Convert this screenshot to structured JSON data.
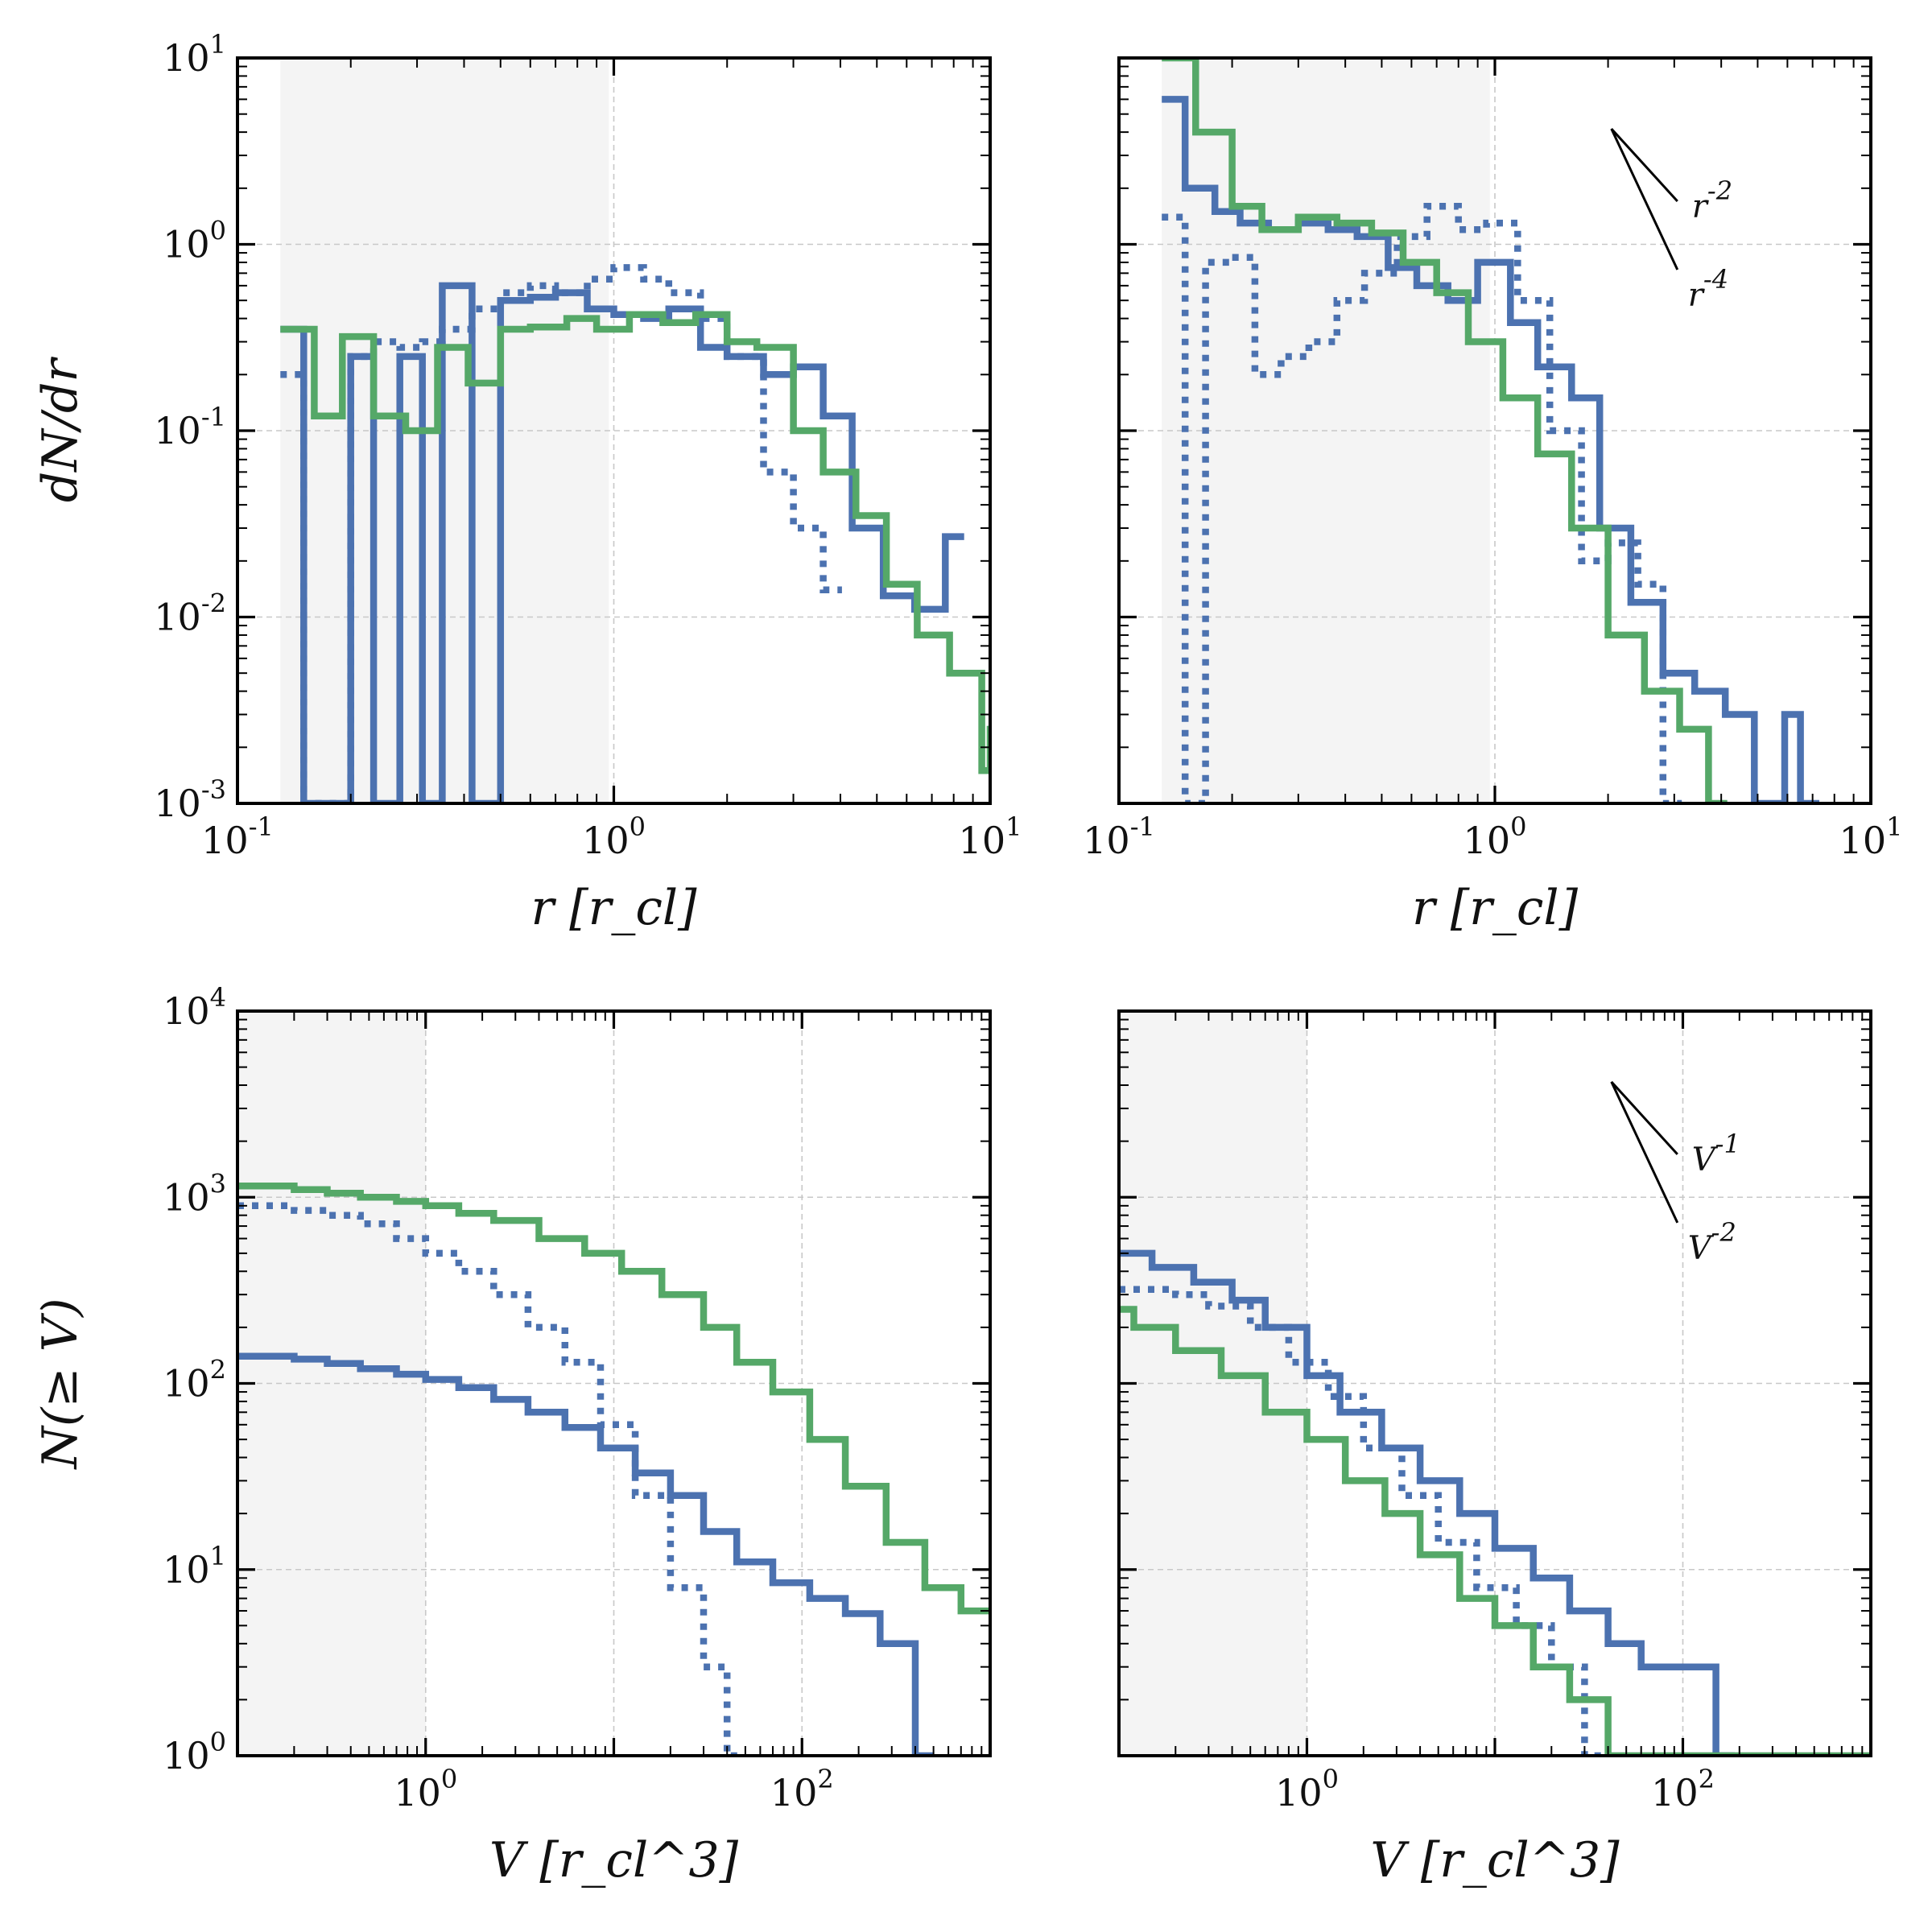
{
  "chart_data": [
    {
      "id": "top-left",
      "type": "line",
      "panel": "top-left",
      "xscale": "log",
      "yscale": "log",
      "xlim": [
        0.1,
        10
      ],
      "ylim": [
        0.001,
        10
      ],
      "shaded_x": [
        0.13,
        0.97
      ],
      "xlabel": "r [r_cl]",
      "ylabel": "dN/dr",
      "x_ticks": [
        {
          "label": "10^-1",
          "value": 0.1
        },
        {
          "label": "10^0",
          "value": 1
        },
        {
          "label": "10^1",
          "value": 10
        }
      ],
      "y_ticks": [
        {
          "label": "10^-3",
          "value": 0.001
        },
        {
          "label": "10^-2",
          "value": 0.01
        },
        {
          "label": "10^-1",
          "value": 0.1
        },
        {
          "label": "10^0",
          "value": 1
        },
        {
          "label": "10^1",
          "value": 10
        }
      ],
      "series": [
        {
          "name": "blue-solid",
          "color": "#4c72b0",
          "style": "solid",
          "x": [
            0.13,
            0.15,
            0.17,
            0.2,
            0.23,
            0.27,
            0.31,
            0.35,
            0.42,
            0.5,
            0.6,
            0.7,
            0.85,
            1.0,
            1.2,
            1.4,
            1.7,
            2.0,
            2.5,
            3.0,
            3.6,
            4.3,
            5.2,
            6.3,
            7.6
          ],
          "y": [
            0.35,
            0.001,
            0.001,
            0.25,
            0.001,
            0.25,
            0.001,
            0.6,
            0.001,
            0.5,
            0.52,
            0.55,
            0.45,
            0.42,
            0.4,
            0.45,
            0.28,
            0.25,
            0.2,
            0.22,
            0.12,
            0.03,
            0.013,
            0.011,
            0.027
          ]
        },
        {
          "name": "blue-dotted",
          "color": "#4c72b0",
          "style": "dotted",
          "x": [
            0.13,
            0.15,
            0.17,
            0.2,
            0.23,
            0.27,
            0.31,
            0.35,
            0.42,
            0.5,
            0.6,
            0.7,
            0.85,
            1.0,
            1.2,
            1.4,
            1.7,
            2.0,
            2.5,
            3.0,
            3.6
          ],
          "y": [
            0.2,
            0.001,
            0.001,
            0.25,
            0.3,
            0.28,
            0.3,
            0.35,
            0.45,
            0.55,
            0.6,
            0.55,
            0.65,
            0.75,
            0.65,
            0.55,
            0.4,
            0.25,
            0.06,
            0.03,
            0.014
          ]
        },
        {
          "name": "green-solid",
          "color": "#55a868",
          "style": "solid",
          "x": [
            0.13,
            0.16,
            0.19,
            0.23,
            0.28,
            0.34,
            0.41,
            0.5,
            0.6,
            0.75,
            0.9,
            1.1,
            1.35,
            1.65,
            2.0,
            2.4,
            3.0,
            3.6,
            4.4,
            5.3,
            6.4,
            7.8,
            9.5,
            10
          ],
          "y": [
            0.35,
            0.12,
            0.32,
            0.12,
            0.1,
            0.28,
            0.18,
            0.35,
            0.36,
            0.4,
            0.35,
            0.42,
            0.38,
            0.42,
            0.3,
            0.28,
            0.1,
            0.06,
            0.035,
            0.015,
            0.008,
            0.005,
            0.0015,
            0.0025
          ]
        }
      ]
    },
    {
      "id": "top-right",
      "type": "line",
      "panel": "top-right",
      "xscale": "log",
      "yscale": "log",
      "xlim": [
        0.1,
        10
      ],
      "ylim": [
        0.001,
        10
      ],
      "shaded_x": [
        0.13,
        0.97
      ],
      "xlabel": "r [r_cl]",
      "ylabel": "",
      "x_ticks": [
        {
          "label": "10^-1",
          "value": 0.1
        },
        {
          "label": "10^0",
          "value": 1
        },
        {
          "label": "10^1",
          "value": 10
        }
      ],
      "y_ticks": [],
      "slope_labels": [
        "r^-2",
        "r^-4"
      ],
      "series": [
        {
          "name": "blue-solid",
          "color": "#4c72b0",
          "style": "solid",
          "x": [
            0.13,
            0.15,
            0.18,
            0.21,
            0.25,
            0.3,
            0.36,
            0.43,
            0.52,
            0.62,
            0.75,
            0.9,
            1.1,
            1.3,
            1.6,
            1.9,
            2.3,
            2.8,
            3.4,
            4.1,
            4.9,
            5.9,
            6.5
          ],
          "y": [
            6,
            2,
            1.5,
            1.3,
            1.2,
            1.3,
            1.2,
            1.1,
            0.75,
            0.6,
            0.5,
            0.8,
            0.38,
            0.22,
            0.15,
            0.03,
            0.012,
            0.005,
            0.004,
            0.003,
            0.001,
            0.003,
            0.001
          ]
        },
        {
          "name": "blue-dotted",
          "color": "#4c72b0",
          "style": "dotted",
          "x": [
            0.13,
            0.15,
            0.17,
            0.2,
            0.23,
            0.27,
            0.32,
            0.38,
            0.45,
            0.55,
            0.66,
            0.8,
            0.95,
            1.15,
            1.4,
            1.7,
            2.0,
            2.4,
            2.8
          ],
          "y": [
            1.4,
            0.001,
            0.8,
            0.85,
            0.2,
            0.25,
            0.3,
            0.5,
            0.7,
            1.1,
            1.6,
            1.2,
            1.3,
            0.5,
            0.1,
            0.02,
            0.025,
            0.015,
            0.001
          ]
        },
        {
          "name": "green-solid",
          "color": "#55a868",
          "style": "solid",
          "x": [
            0.13,
            0.16,
            0.2,
            0.24,
            0.3,
            0.38,
            0.47,
            0.57,
            0.7,
            0.85,
            1.05,
            1.3,
            1.6,
            2.0,
            2.5,
            3.1,
            3.7
          ],
          "y": [
            10,
            4,
            1.6,
            1.2,
            1.4,
            1.3,
            1.15,
            0.8,
            0.55,
            0.3,
            0.15,
            0.075,
            0.03,
            0.008,
            0.004,
            0.0025,
            0.001
          ]
        }
      ]
    },
    {
      "id": "bottom-left",
      "type": "line",
      "panel": "bottom-left",
      "xscale": "log",
      "yscale": "log",
      "xlim": [
        0.1,
        1000
      ],
      "ylim": [
        1,
        10000
      ],
      "shaded_x": [
        0.1,
        1
      ],
      "xlabel": "V [r_cl^3]",
      "ylabel": "N(≥ V)",
      "x_ticks": [
        {
          "label": "10^0",
          "value": 1
        },
        {
          "label": "10^2",
          "value": 100
        }
      ],
      "y_ticks": [
        {
          "label": "10^0",
          "value": 1
        },
        {
          "label": "10^1",
          "value": 10
        },
        {
          "label": "10^2",
          "value": 100
        },
        {
          "label": "10^3",
          "value": 1000
        },
        {
          "label": "10^4",
          "value": 10000
        }
      ],
      "series": [
        {
          "name": "blue-solid",
          "color": "#4c72b0",
          "style": "solid",
          "x": [
            0.1,
            0.2,
            0.3,
            0.45,
            0.7,
            1.0,
            1.5,
            2.3,
            3.5,
            5.5,
            8.5,
            13,
            20,
            30,
            45,
            70,
            110,
            170,
            260,
            400
          ],
          "y": [
            140,
            135,
            128,
            120,
            112,
            105,
            95,
            82,
            70,
            58,
            45,
            33,
            25,
            16,
            11,
            8.5,
            7,
            5.8,
            4,
            1
          ]
        },
        {
          "name": "blue-dotted",
          "color": "#4c72b0",
          "style": "dotted",
          "x": [
            0.1,
            0.2,
            0.3,
            0.45,
            0.7,
            1.0,
            1.5,
            2.3,
            3.5,
            5.5,
            8.5,
            13,
            20,
            30,
            40
          ],
          "y": [
            900,
            850,
            800,
            720,
            600,
            500,
            400,
            300,
            200,
            130,
            60,
            25,
            8,
            3,
            1
          ]
        },
        {
          "name": "green-solid",
          "color": "#55a868",
          "style": "solid",
          "x": [
            0.1,
            0.2,
            0.3,
            0.45,
            0.7,
            1.0,
            1.5,
            2.3,
            4,
            7,
            11,
            18,
            30,
            45,
            70,
            110,
            170,
            280,
            450,
            700,
            1000
          ],
          "y": [
            1150,
            1100,
            1050,
            1000,
            950,
            900,
            820,
            750,
            600,
            500,
            400,
            300,
            200,
            130,
            90,
            50,
            28,
            14,
            8,
            6,
            6
          ]
        }
      ]
    },
    {
      "id": "bottom-right",
      "type": "line",
      "panel": "bottom-right",
      "xscale": "log",
      "yscale": "log",
      "xlim": [
        0.1,
        1000
      ],
      "ylim": [
        1,
        10000
      ],
      "shaded_x": [
        0.1,
        1
      ],
      "xlabel": "V [r_cl^3]",
      "ylabel": "",
      "x_ticks": [
        {
          "label": "10^0",
          "value": 1
        },
        {
          "label": "10^2",
          "value": 100
        }
      ],
      "y_ticks": [],
      "slope_labels": [
        "V^-1",
        "V^-2"
      ],
      "series": [
        {
          "name": "blue-solid",
          "color": "#4c72b0",
          "style": "solid",
          "x": [
            0.1,
            0.15,
            0.25,
            0.4,
            0.6,
            1.0,
            1.5,
            2.5,
            4,
            6.5,
            10,
            16,
            25,
            40,
            60,
            100,
            150
          ],
          "y": [
            500,
            420,
            350,
            280,
            200,
            110,
            70,
            45,
            30,
            20,
            13,
            9,
            6,
            4,
            3,
            3,
            1
          ]
        },
        {
          "name": "blue-dotted",
          "color": "#4c72b0",
          "style": "dotted",
          "x": [
            0.1,
            0.2,
            0.3,
            0.5,
            0.8,
            1.3,
            2,
            3.2,
            5,
            8,
            13,
            20,
            30
          ],
          "y": [
            320,
            300,
            260,
            200,
            130,
            85,
            45,
            25,
            14,
            8,
            5,
            3,
            1
          ]
        },
        {
          "name": "green-solid",
          "color": "#55a868",
          "style": "solid",
          "x": [
            0.1,
            0.12,
            0.2,
            0.35,
            0.6,
            1.0,
            1.6,
            2.6,
            4,
            6.5,
            10,
            16,
            25,
            40,
            100,
            1000
          ],
          "y": [
            250,
            200,
            150,
            110,
            70,
            50,
            30,
            20,
            12,
            7,
            5,
            3,
            2,
            1,
            1,
            1
          ]
        }
      ]
    }
  ]
}
